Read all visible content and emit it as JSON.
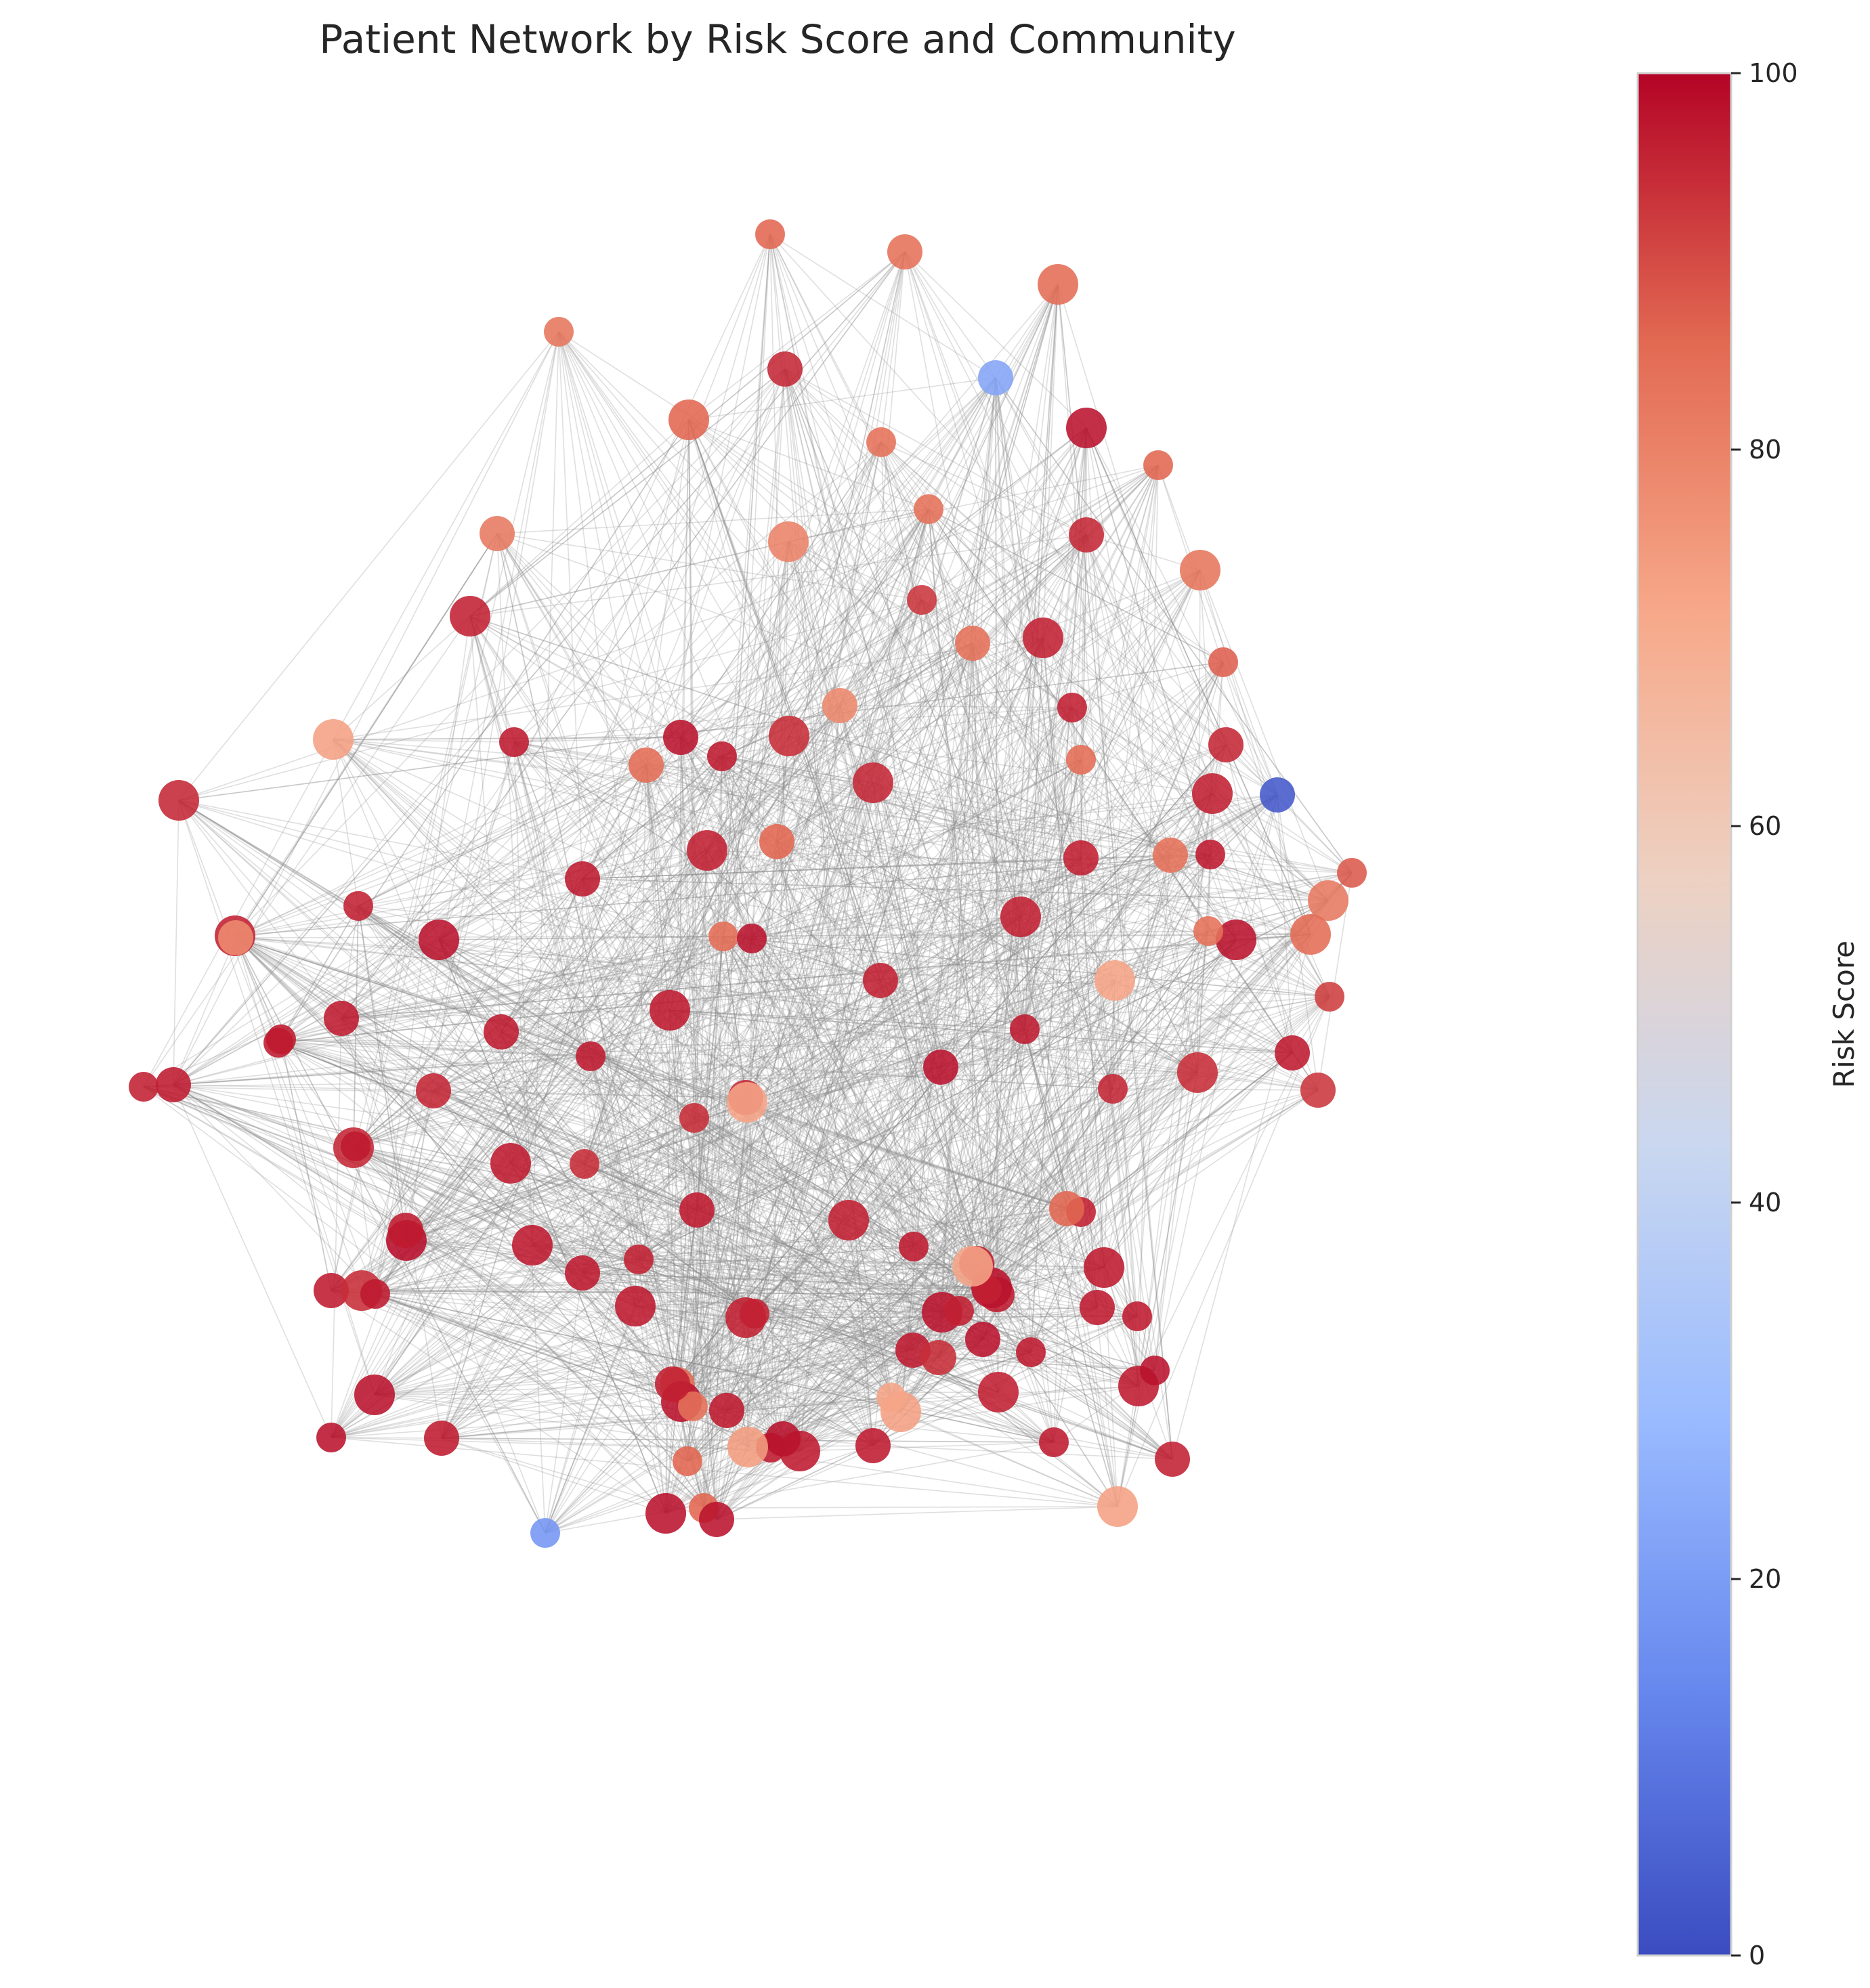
{
  "title": "Patient Network by Risk Score and Community",
  "colorbar": {
    "label": "Risk Score",
    "min": 0,
    "max": 100,
    "ticks": [
      "0",
      "20",
      "40",
      "60",
      "80",
      "100"
    ],
    "colormap": "coolwarm",
    "stops": [
      "#3b4cc0",
      "#6788ee",
      "#9abbff",
      "#c9d7f0",
      "#edd1c2",
      "#f7a889",
      "#e26952",
      "#b40426"
    ]
  },
  "chart_data": {
    "type": "network",
    "title": "Patient Network by Risk Score and Community",
    "node_count": 133,
    "color_encodes": "Risk Score",
    "color_range": [
      0,
      100
    ],
    "risk_scores": [
      86,
      84,
      85,
      83,
      95,
      86,
      84,
      22,
      98,
      86,
      82,
      80,
      84,
      95,
      83,
      93,
      84,
      96,
      96,
      79,
      94,
      97,
      98,
      96,
      87,
      95,
      96,
      97,
      3,
      73,
      97,
      85,
      95,
      85,
      84,
      82,
      88,
      97,
      98,
      92,
      93,
      85,
      84,
      86,
      96,
      85,
      96,
      72,
      98,
      96,
      96,
      97,
      98,
      94,
      95,
      97,
      97,
      94,
      95,
      72,
      97,
      97,
      97,
      94,
      95,
      98,
      96,
      97,
      95,
      97,
      97,
      96,
      97,
      78,
      99,
      97,
      97,
      95,
      96,
      97,
      94,
      97,
      97,
      96,
      97,
      97,
      98,
      97,
      98,
      96,
      96,
      86,
      97,
      98,
      96,
      73,
      97,
      97,
      97,
      97,
      97,
      98,
      96,
      97,
      72,
      96,
      94,
      73,
      72,
      97,
      97,
      97,
      98,
      96,
      96,
      85,
      98,
      84,
      96,
      97,
      96,
      97,
      97,
      86,
      97,
      74,
      86,
      98,
      98,
      18,
      97,
      98,
      98
    ]
  }
}
